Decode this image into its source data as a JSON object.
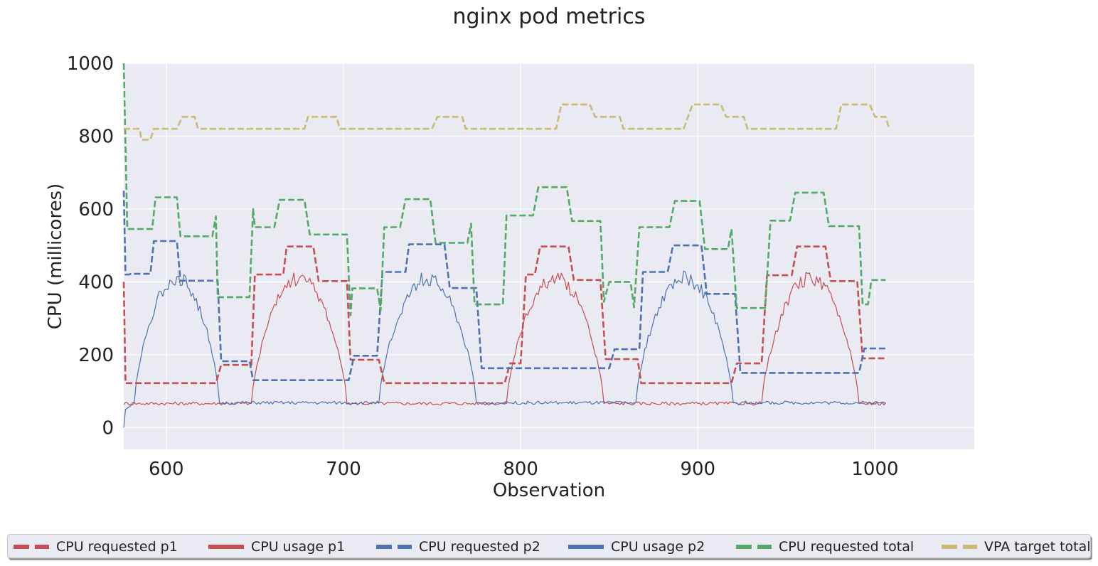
{
  "chart_data": {
    "type": "line",
    "title": "nginx pod metrics",
    "xlabel": "Observation",
    "ylabel": "CPU (millicores)",
    "xlim": [
      576,
      1056
    ],
    "ylim": [
      -60,
      1000
    ],
    "xticks": [
      600,
      700,
      800,
      900,
      1000
    ],
    "yticks": [
      0,
      200,
      400,
      600,
      800,
      1000
    ],
    "grid": true,
    "legend_position": "bottom",
    "series": [
      {
        "name": "CPU requested p1",
        "color": "#c44e52",
        "style": "dashed",
        "kind": "step",
        "points": [
          [
            576,
            400
          ],
          [
            577,
            122
          ],
          [
            628,
            122
          ],
          [
            631,
            172
          ],
          [
            648,
            172
          ],
          [
            650,
            420
          ],
          [
            666,
            420
          ],
          [
            668,
            497
          ],
          [
            683,
            497
          ],
          [
            686,
            402
          ],
          [
            702,
            402
          ],
          [
            704,
            186
          ],
          [
            720,
            186
          ],
          [
            723,
            122
          ],
          [
            791,
            122
          ],
          [
            794,
            176
          ],
          [
            800,
            176
          ],
          [
            803,
            420
          ],
          [
            808,
            420
          ],
          [
            811,
            497
          ],
          [
            827,
            497
          ],
          [
            830,
            405
          ],
          [
            845,
            405
          ],
          [
            848,
            188
          ],
          [
            866,
            188
          ],
          [
            868,
            122
          ],
          [
            919,
            122
          ],
          [
            922,
            176
          ],
          [
            936,
            176
          ],
          [
            939,
            418
          ],
          [
            953,
            418
          ],
          [
            956,
            497
          ],
          [
            972,
            497
          ],
          [
            975,
            402
          ],
          [
            990,
            402
          ],
          [
            993,
            190
          ],
          [
            1006,
            190
          ]
        ]
      },
      {
        "name": "CPU usage p1",
        "color": "#c44e52",
        "style": "solid",
        "kind": "profile",
        "baseline": 66,
        "humps": [
          [
            648,
            702,
            410
          ],
          [
            792,
            847,
            410
          ],
          [
            936,
            991,
            410
          ]
        ]
      },
      {
        "name": "CPU requested p2",
        "color": "#4c72b0",
        "style": "dashed",
        "kind": "step",
        "points": [
          [
            576,
            650
          ],
          [
            577,
            420
          ],
          [
            579,
            420
          ],
          [
            580,
            422
          ],
          [
            591,
            422
          ],
          [
            593,
            512
          ],
          [
            606,
            512
          ],
          [
            608,
            403
          ],
          [
            629,
            403
          ],
          [
            631,
            182
          ],
          [
            647,
            182
          ],
          [
            649,
            130
          ],
          [
            703,
            130
          ],
          [
            706,
            197
          ],
          [
            719,
            197
          ],
          [
            722,
            427
          ],
          [
            735,
            427
          ],
          [
            737,
            503
          ],
          [
            757,
            503
          ],
          [
            760,
            383
          ],
          [
            775,
            383
          ],
          [
            778,
            163
          ],
          [
            850,
            163
          ],
          [
            853,
            215
          ],
          [
            867,
            215
          ],
          [
            869,
            427
          ],
          [
            883,
            427
          ],
          [
            886,
            500
          ],
          [
            902,
            500
          ],
          [
            905,
            367
          ],
          [
            921,
            367
          ],
          [
            924,
            150
          ],
          [
            991,
            150
          ],
          [
            994,
            217
          ],
          [
            1006,
            217
          ]
        ]
      },
      {
        "name": "CPU usage p2",
        "color": "#4c72b0",
        "style": "solid",
        "kind": "profile",
        "baseline": 68,
        "start": [
          [
            576,
            0
          ],
          [
            577,
            50
          ],
          [
            580,
            60
          ]
        ],
        "humps": [
          [
            582,
            630,
            410
          ],
          [
            720,
            775,
            410
          ],
          [
            865,
            920,
            410
          ]
        ]
      },
      {
        "name": "CPU requested total",
        "color": "#55a868",
        "style": "dashed",
        "kind": "step",
        "points": [
          [
            576,
            1000
          ],
          [
            578,
            545
          ],
          [
            592,
            545
          ],
          [
            594,
            632
          ],
          [
            606,
            632
          ],
          [
            608,
            525
          ],
          [
            626,
            525
          ],
          [
            628,
            580
          ],
          [
            629,
            358
          ],
          [
            647,
            358
          ],
          [
            649,
            600
          ],
          [
            650,
            550
          ],
          [
            661,
            550
          ],
          [
            664,
            625
          ],
          [
            678,
            625
          ],
          [
            681,
            530
          ],
          [
            702,
            530
          ],
          [
            704,
            308
          ],
          [
            705,
            382
          ],
          [
            719,
            382
          ],
          [
            721,
            322
          ],
          [
            723,
            550
          ],
          [
            732,
            550
          ],
          [
            735,
            627
          ],
          [
            749,
            627
          ],
          [
            752,
            507
          ],
          [
            770,
            507
          ],
          [
            772,
            560
          ],
          [
            774,
            338
          ],
          [
            790,
            338
          ],
          [
            792,
            582
          ],
          [
            807,
            582
          ],
          [
            810,
            660
          ],
          [
            826,
            660
          ],
          [
            829,
            567
          ],
          [
            845,
            567
          ],
          [
            847,
            345
          ],
          [
            850,
            400
          ],
          [
            862,
            400
          ],
          [
            864,
            330
          ],
          [
            867,
            550
          ],
          [
            884,
            550
          ],
          [
            887,
            622
          ],
          [
            901,
            622
          ],
          [
            904,
            490
          ],
          [
            917,
            490
          ],
          [
            919,
            545
          ],
          [
            922,
            328
          ],
          [
            938,
            328
          ],
          [
            941,
            568
          ],
          [
            952,
            568
          ],
          [
            955,
            645
          ],
          [
            971,
            645
          ],
          [
            974,
            553
          ],
          [
            991,
            553
          ],
          [
            993,
            338
          ],
          [
            996,
            338
          ],
          [
            998,
            405
          ],
          [
            1006,
            405
          ]
        ]
      },
      {
        "name": "VPA target total",
        "color": "#ccb974",
        "style": "dashed",
        "kind": "step",
        "points": [
          [
            576,
            820
          ],
          [
            585,
            820
          ],
          [
            586,
            790
          ],
          [
            591,
            790
          ],
          [
            593,
            820
          ],
          [
            606,
            820
          ],
          [
            609,
            853
          ],
          [
            616,
            853
          ],
          [
            618,
            820
          ],
          [
            658,
            820
          ],
          [
            678,
            820
          ],
          [
            680,
            853
          ],
          [
            696,
            853
          ],
          [
            698,
            820
          ],
          [
            730,
            820
          ],
          [
            750,
            820
          ],
          [
            753,
            853
          ],
          [
            767,
            853
          ],
          [
            769,
            820
          ],
          [
            795,
            820
          ],
          [
            820,
            820
          ],
          [
            823,
            887
          ],
          [
            839,
            887
          ],
          [
            842,
            853
          ],
          [
            856,
            853
          ],
          [
            858,
            820
          ],
          [
            892,
            820
          ],
          [
            897,
            887
          ],
          [
            913,
            887
          ],
          [
            916,
            853
          ],
          [
            926,
            853
          ],
          [
            928,
            820
          ],
          [
            978,
            820
          ],
          [
            981,
            887
          ],
          [
            997,
            887
          ],
          [
            1000,
            853
          ],
          [
            1006,
            853
          ],
          [
            1008,
            820
          ]
        ]
      }
    ]
  }
}
